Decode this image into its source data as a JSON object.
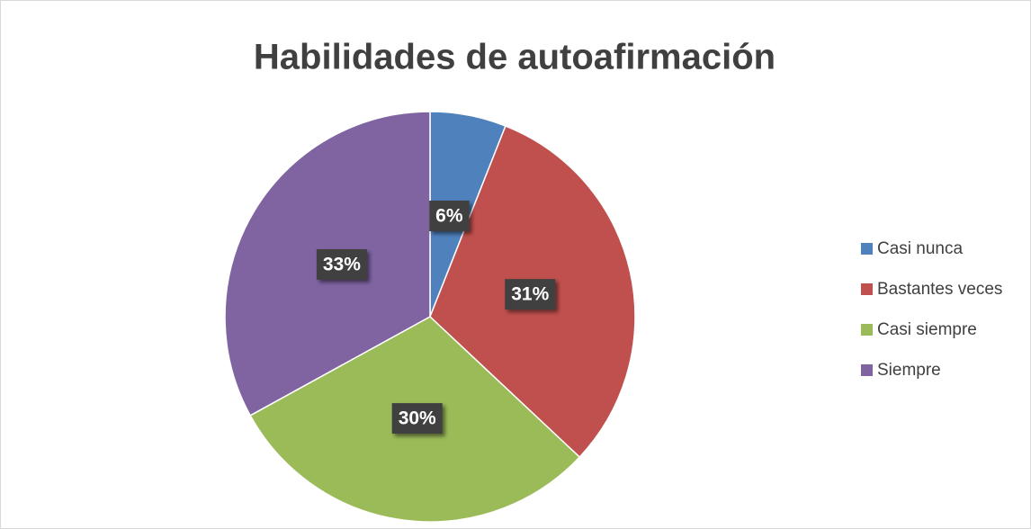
{
  "chart_data": {
    "type": "pie",
    "title": "Habilidades de autoafirmación",
    "categories": [
      "Casi nunca",
      "Bastantes veces",
      "Casi siempre",
      "Siempre"
    ],
    "values": [
      6,
      31,
      30,
      33
    ],
    "value_labels": [
      "6%",
      "31%",
      "30%",
      "33%"
    ],
    "colors": [
      "#4f81bd",
      "#c0504d",
      "#9bbb59",
      "#8064a2"
    ],
    "legend": "right"
  }
}
